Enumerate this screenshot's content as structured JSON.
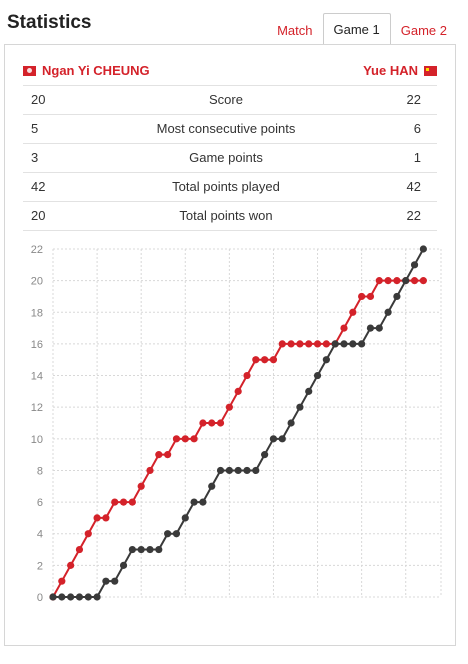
{
  "header": {
    "title": "Statistics"
  },
  "tabs": [
    {
      "label": "Match",
      "active": false
    },
    {
      "label": "Game 1",
      "active": true
    },
    {
      "label": "Game 2",
      "active": false
    }
  ],
  "players": {
    "left": {
      "name": "Ngan Yi CHEUNG",
      "flag_icon": "hong-kong-flag-icon"
    },
    "right": {
      "name": "Yue HAN",
      "flag_icon": "china-flag-icon"
    }
  },
  "stats": [
    {
      "left": "20",
      "label": "Score",
      "right": "22"
    },
    {
      "left": "5",
      "label": "Most consecutive points",
      "right": "6"
    },
    {
      "left": "3",
      "label": "Game points",
      "right": "1"
    },
    {
      "left": "42",
      "label": "Total points played",
      "right": "42"
    },
    {
      "left": "20",
      "label": "Total points won",
      "right": "22"
    }
  ],
  "colors": {
    "accent": "#d4222a",
    "player1": "#d4222a",
    "player2": "#3a3a3a"
  },
  "chart_data": {
    "type": "line",
    "title": "",
    "xlabel": "",
    "ylabel": "",
    "ylim": [
      0,
      22
    ],
    "yticks": [
      0,
      2,
      4,
      6,
      8,
      10,
      12,
      14,
      16,
      18,
      20,
      22
    ],
    "grid": true,
    "x": [
      0,
      1,
      2,
      3,
      4,
      5,
      6,
      7,
      8,
      9,
      10,
      11,
      12,
      13,
      14,
      15,
      16,
      17,
      18,
      19,
      20,
      21,
      22,
      23,
      24,
      25,
      26,
      27,
      28,
      29,
      30,
      31,
      32,
      33,
      34,
      35,
      36,
      37,
      38,
      39,
      40,
      41,
      42
    ],
    "series": [
      {
        "values": [
          0,
          1,
          2,
          3,
          4,
          5,
          5,
          6,
          6,
          6,
          7,
          8,
          9,
          9,
          10,
          10,
          10,
          11,
          11,
          11,
          12,
          13,
          14,
          15,
          15,
          15,
          16,
          16,
          16,
          16,
          16,
          16,
          16,
          17,
          18,
          19,
          19,
          20,
          20,
          20,
          20,
          20,
          20
        ]
      },
      {
        "values": [
          0,
          0,
          0,
          0,
          0,
          0,
          1,
          1,
          2,
          3,
          3,
          3,
          3,
          4,
          4,
          5,
          6,
          6,
          7,
          8,
          8,
          8,
          8,
          8,
          9,
          10,
          10,
          11,
          12,
          13,
          14,
          15,
          16,
          16,
          16,
          16,
          17,
          17,
          18,
          19,
          20,
          21,
          22
        ]
      }
    ]
  }
}
